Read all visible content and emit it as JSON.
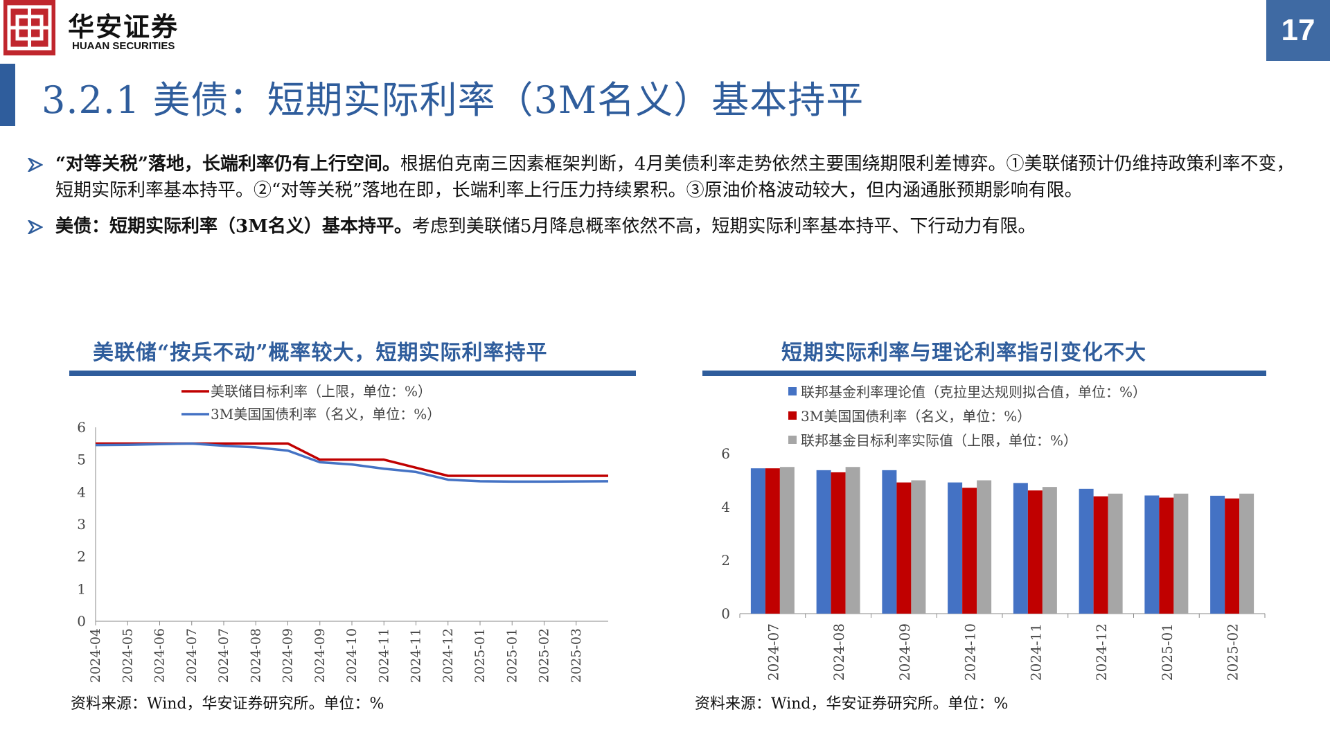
{
  "header": {
    "logo_cn": "华安证券",
    "logo_en": "HUAAN SECURITIES",
    "page_number": "17"
  },
  "page_title": "3.2.1 美债：短期实际利率（3M名义）基本持平",
  "bullets": [
    {
      "bold": "“对等关税”落地，长端利率仍有上行空间。",
      "text": "根据伯克南三因素框架判断，4月美债利率走势依然主要围绕期限利差博弈。①美联储预计仍维持政策利率不变，短期实际利率基本持平。②“对等关税”落地在即，长端利率上行压力持续累积。③原油价格波动较大，但内涵通胀预期影响有限。"
    },
    {
      "bold": "美债：短期实际利率（3M名义）基本持平。",
      "text": "考虑到美联储5月降息概率依然不高，短期实际利率基本持平、下行动力有限。"
    }
  ],
  "colors": {
    "brand": "#2f5d9c",
    "red": "#c00000",
    "blue": "#4472c4",
    "gray": "#a6a6a6",
    "logo_red": "#c0262d"
  },
  "chart_left": {
    "title": "美联储“按兵不动”概率较大，短期实际利率持平",
    "source": "资料来源：Wind，华安证券研究所。单位：%"
  },
  "chart_right": {
    "title": "短期实际利率与理论利率指引变化不大",
    "source": "资料来源：Wind，华安证券研究所。单位：%"
  },
  "chart_data": [
    {
      "type": "line",
      "x": [
        "2024-04",
        "2024-05",
        "2024-06",
        "2024-07",
        "2024-07",
        "2024-08",
        "2024-09",
        "2024-09",
        "2024-10",
        "2024-11",
        "2024-11",
        "2024-12",
        "2025-01",
        "2025-01",
        "2025-02",
        "2025-03"
      ],
      "series": [
        {
          "name": "美联储目标利率（上限，单位：%）",
          "color": "#c00000",
          "values": [
            5.5,
            5.5,
            5.5,
            5.5,
            5.5,
            5.5,
            5.5,
            5.0,
            5.0,
            5.0,
            4.75,
            4.5,
            4.5,
            4.5,
            4.5,
            4.5
          ]
        },
        {
          "name": "3M美国国债利率（名义，单位：%）",
          "color": "#4472c4",
          "values": [
            5.45,
            5.46,
            5.48,
            5.5,
            5.43,
            5.38,
            5.28,
            4.92,
            4.85,
            4.72,
            4.62,
            4.38,
            4.33,
            4.32,
            4.32,
            4.33
          ]
        }
      ],
      "ylim": [
        0,
        6
      ],
      "yticks": [
        0,
        1,
        2,
        3,
        4,
        5,
        6
      ],
      "legend": "top",
      "grid": false
    },
    {
      "type": "bar",
      "categories": [
        "2024-07",
        "2024-08",
        "2024-09",
        "2024-10",
        "2024-11",
        "2024-12",
        "2025-01",
        "2025-02"
      ],
      "series": [
        {
          "name": "联邦基金利率理论值（克拉里达规则拟合值，单位：%）",
          "color": "#4472c4",
          "values": [
            5.45,
            5.38,
            5.38,
            4.92,
            4.9,
            4.68,
            4.43,
            4.42
          ]
        },
        {
          "name": "3M美国国债利率（名义，单位：%）",
          "color": "#c00000",
          "values": [
            5.45,
            5.3,
            4.92,
            4.72,
            4.62,
            4.4,
            4.35,
            4.32
          ]
        },
        {
          "name": "联邦基金目标利率实际值（上限，单位：%）",
          "color": "#a6a6a6",
          "values": [
            5.5,
            5.5,
            5.0,
            5.0,
            4.75,
            4.5,
            4.5,
            4.5
          ]
        }
      ],
      "ylim": [
        0,
        6
      ],
      "yticks": [
        0,
        2,
        4,
        6
      ],
      "legend": "top",
      "grid": false
    }
  ]
}
